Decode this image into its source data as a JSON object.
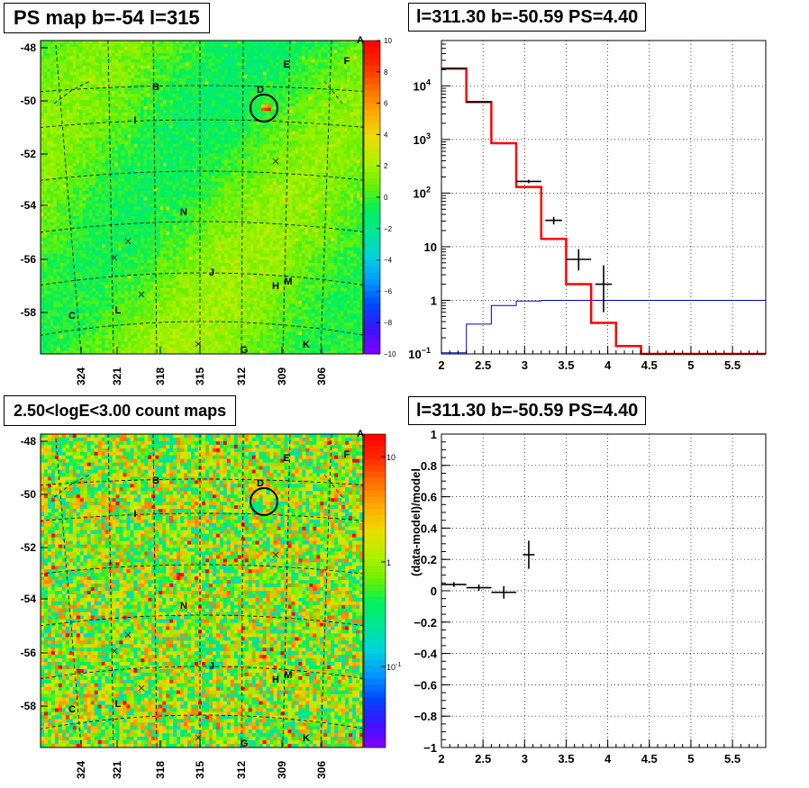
{
  "titles": {
    "ps_map": "PS map b=-54 l=315",
    "spectrum": "l=311.30 b=-50.59 PS=4.40",
    "count_map": "2.50<logE<3.00 count maps",
    "residual": "l=311.30 b=-50.59 PS=4.40"
  },
  "chart_data": [
    {
      "type": "heatmap",
      "name": "ps-map",
      "title": "PS map b=-54 l=315",
      "x_ticks": [
        "324",
        "321",
        "318",
        "315",
        "312",
        "309",
        "306"
      ],
      "y_ticks": [
        "-48",
        "-50",
        "-52",
        "-54",
        "-56",
        "-58"
      ],
      "colorbar_ticks": [
        "10",
        "8",
        "6",
        "4",
        "2",
        "0",
        "−2",
        "−4",
        "−6",
        "−8",
        "−10"
      ],
      "colorbar_range": [
        -10,
        10
      ],
      "field_labels": [
        "A",
        "B",
        "C",
        "D",
        "E",
        "F",
        "G",
        "H",
        "I",
        "J",
        "K",
        "L",
        "M",
        "N"
      ],
      "circle_label": "D"
    },
    {
      "type": "line",
      "name": "spectrum",
      "title": "l=311.30 b=-50.59 PS=4.40",
      "log_y": true,
      "xlim": [
        2,
        5.9
      ],
      "ylim": [
        0.1,
        70000
      ],
      "x_ticks": [
        "2",
        "2.5",
        "3",
        "3.5",
        "4",
        "4.5",
        "5",
        "5.5"
      ],
      "y_ticks": [
        {
          "v": 10000,
          "base": "10",
          "exp": "4"
        },
        {
          "v": 1000,
          "base": "10",
          "exp": "3"
        },
        {
          "v": 100,
          "base": "10",
          "exp": "2"
        },
        {
          "v": 10,
          "base": "10",
          "exp": ""
        },
        {
          "v": 1,
          "base": "1",
          "exp": ""
        },
        {
          "v": 0.1,
          "base": "10",
          "exp": "−1"
        }
      ],
      "model_red": {
        "edges": [
          2.0,
          2.3,
          2.6,
          2.9,
          3.2,
          3.5,
          3.8,
          4.1,
          4.4,
          5.9
        ],
        "values": [
          21000,
          5000,
          850,
          130,
          14,
          2.0,
          0.38,
          0.14,
          0.1
        ]
      },
      "model_blue": {
        "edges": [
          2.0,
          2.3,
          2.6,
          2.9,
          3.2,
          5.9
        ],
        "values": [
          0.105,
          0.36,
          0.8,
          0.97,
          1.0
        ]
      },
      "data_points": [
        {
          "x": 2.15,
          "xerr": 0.15,
          "y": 21000,
          "ylo": 20800,
          "yhi": 21200
        },
        {
          "x": 2.45,
          "xerr": 0.15,
          "y": 5000,
          "ylo": 4900,
          "yhi": 5100
        },
        {
          "x": 3.05,
          "xerr": 0.15,
          "y": 165,
          "ylo": 153,
          "yhi": 177
        },
        {
          "x": 3.35,
          "xerr": 0.1,
          "y": 31,
          "ylo": 26,
          "yhi": 36
        },
        {
          "x": 3.65,
          "xerr": 0.15,
          "y": 5.8,
          "ylo": 3.6,
          "yhi": 9.0
        },
        {
          "x": 3.95,
          "xerr": 0.1,
          "y": 2.0,
          "ylo": 0.6,
          "yhi": 4.5
        }
      ]
    },
    {
      "type": "heatmap",
      "name": "count-map",
      "title": "2.50<logE<3.00 count maps",
      "x_ticks": [
        "324",
        "321",
        "318",
        "315",
        "312",
        "309",
        "306"
      ],
      "y_ticks": [
        "-48",
        "-50",
        "-52",
        "-54",
        "-56",
        "-58"
      ],
      "colorbar_ticks": [
        {
          "label": "10",
          "exp": ""
        },
        {
          "label": "1",
          "exp": ""
        },
        {
          "label": "10",
          "exp": "-1"
        }
      ],
      "log_scale": true,
      "field_labels": [
        "A",
        "B",
        "C",
        "D",
        "E",
        "F",
        "G",
        "H",
        "I",
        "J",
        "K",
        "L",
        "M",
        "N"
      ],
      "circle_label": "D"
    },
    {
      "type": "scatter",
      "name": "residual",
      "title": "l=311.30 b=-50.59 PS=4.40",
      "ylabel": "(data-model)/model",
      "xlim": [
        2,
        5.9
      ],
      "ylim": [
        -1,
        1
      ],
      "x_ticks": [
        "2",
        "2.5",
        "3",
        "3.5",
        "4",
        "4.5",
        "5",
        "5.5"
      ],
      "y_ticks": [
        "1",
        "0.8",
        "0.6",
        "0.4",
        "0.2",
        "0",
        "−0.2",
        "−0.4",
        "−0.6",
        "−0.8",
        "−1"
      ],
      "points": [
        {
          "x": 2.15,
          "xerr": 0.15,
          "y": 0.04,
          "yerr": 0.015
        },
        {
          "x": 2.45,
          "xerr": 0.15,
          "y": 0.02,
          "yerr": 0.02
        },
        {
          "x": 2.75,
          "xerr": 0.15,
          "y": -0.01,
          "yerr": 0.04
        },
        {
          "x": 3.05,
          "xerr": 0.07,
          "y": 0.23,
          "yerr": 0.09
        }
      ]
    }
  ]
}
